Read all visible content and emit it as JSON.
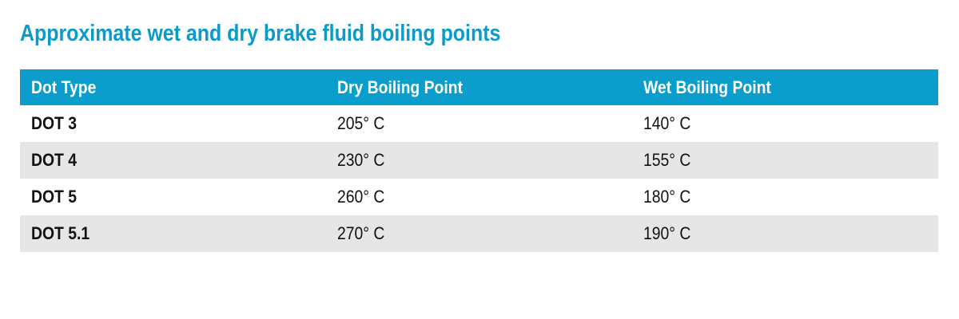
{
  "title": "Approximate wet and dry brake fluid boiling points",
  "table": {
    "header": [
      "Dot Type",
      "Dry Boiling Point",
      "Wet Boiling Point"
    ],
    "rows": [
      [
        "DOT 3",
        "205° C",
        "140° C"
      ],
      [
        "DOT 4",
        "230° C",
        "155° C"
      ],
      [
        "DOT 5",
        "260° C",
        "180° C"
      ],
      [
        "DOT 5.1",
        "270° C",
        "190° C"
      ]
    ]
  }
}
